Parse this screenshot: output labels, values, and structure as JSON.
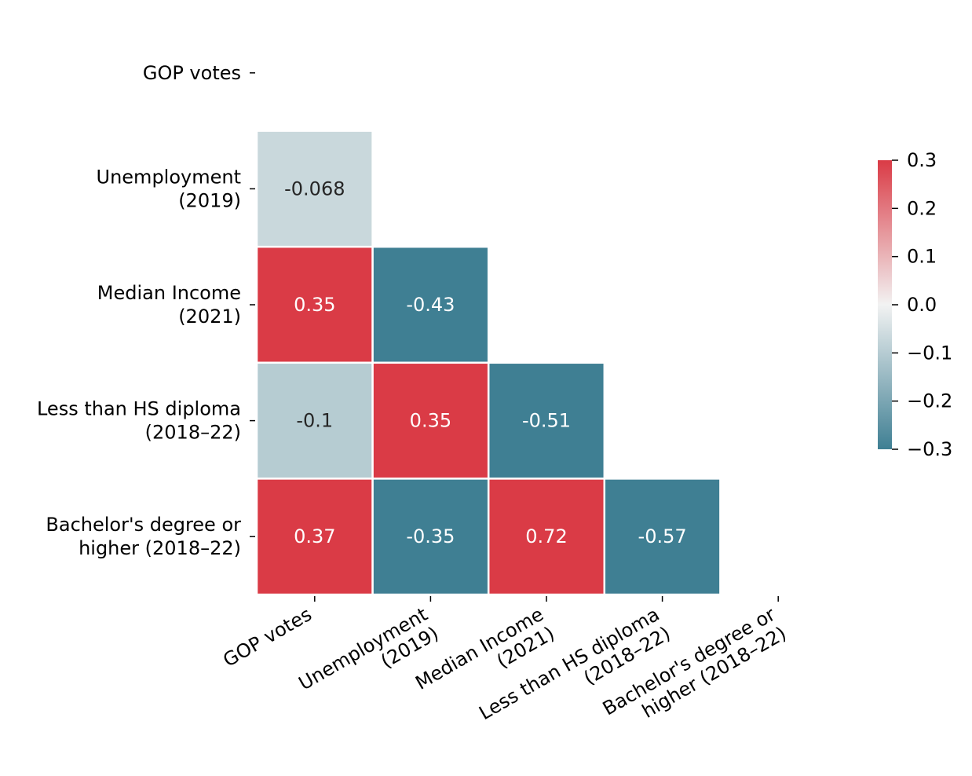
{
  "chart_data": {
    "type": "heatmap",
    "subtype": "lower-triangle correlation matrix",
    "title": "",
    "xlabel": "",
    "ylabel": "",
    "variables": [
      [
        "GOP votes"
      ],
      [
        "Unemployment",
        "(2019)"
      ],
      [
        "Median Income",
        "(2021)"
      ],
      [
        "Less than HS diploma",
        "(2018–22)"
      ],
      [
        "Bachelor's degree or",
        "higher (2018–22)"
      ]
    ],
    "cells": [
      {
        "row": 1,
        "col": 0,
        "value": -0.068,
        "label": "-0.068"
      },
      {
        "row": 2,
        "col": 0,
        "value": 0.35,
        "label": "0.35"
      },
      {
        "row": 2,
        "col": 1,
        "value": -0.43,
        "label": "-0.43"
      },
      {
        "row": 3,
        "col": 0,
        "value": -0.1,
        "label": "-0.1"
      },
      {
        "row": 3,
        "col": 1,
        "value": 0.35,
        "label": "0.35"
      },
      {
        "row": 3,
        "col": 2,
        "value": -0.51,
        "label": "-0.51"
      },
      {
        "row": 4,
        "col": 0,
        "value": 0.37,
        "label": "0.37"
      },
      {
        "row": 4,
        "col": 1,
        "value": -0.35,
        "label": "-0.35"
      },
      {
        "row": 4,
        "col": 2,
        "value": 0.72,
        "label": "0.72"
      },
      {
        "row": 4,
        "col": 3,
        "value": -0.57,
        "label": "-0.57"
      }
    ],
    "colorbar": {
      "vmin": -0.3,
      "vmax": 0.3,
      "ticks": [
        0.3,
        0.2,
        0.1,
        0.0,
        -0.1,
        -0.2,
        -0.3
      ],
      "tick_labels": [
        "0.3",
        "0.2",
        "0.1",
        "0.0",
        "−0.1",
        "−0.2",
        "−0.3"
      ],
      "low_color": "#3f7f93",
      "mid_color": "#f2f2f2",
      "high_color": "#da3b46"
    },
    "mask": "upper triangle and diagonal",
    "grid": false
  }
}
